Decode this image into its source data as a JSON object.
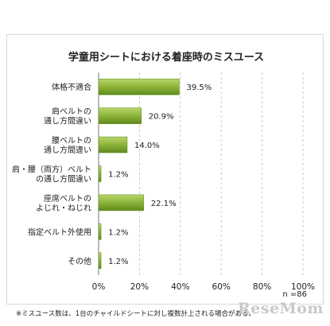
{
  "chart_data": {
    "type": "bar",
    "orientation": "horizontal",
    "title": "学童用シートにおける着座時のミスユース",
    "categories": [
      [
        "体格不適合"
      ],
      [
        "肩ベルトの",
        "通し方間違い"
      ],
      [
        "腰ベルトの",
        "通し方間違い"
      ],
      [
        "肩・腰（両方）ベルト",
        "の通し方間違い"
      ],
      [
        "座席ベルトの",
        "よじれ・ねじれ"
      ],
      [
        "指定ベルト外使用"
      ],
      [
        "その他"
      ]
    ],
    "values": [
      39.5,
      20.9,
      14.0,
      1.2,
      22.1,
      1.2,
      1.2
    ],
    "value_labels": [
      "39.5%",
      "20.9%",
      "14.0%",
      "1.2%",
      "22.1%",
      "1.2%",
      "1.2%"
    ],
    "xlim": [
      0,
      100
    ],
    "x_ticks": [
      "0%",
      "20%",
      "40%",
      "60%",
      "80%",
      "100%"
    ],
    "x_tick_values": [
      0,
      20,
      40,
      60,
      80,
      100
    ],
    "grid": true,
    "bar_color": "#8db33a",
    "n_label": "n =86",
    "footnote": "※ミスユース数は、1台のチャイルドシートに対し複数計上される場合がある。"
  },
  "watermark": "ReseMom"
}
